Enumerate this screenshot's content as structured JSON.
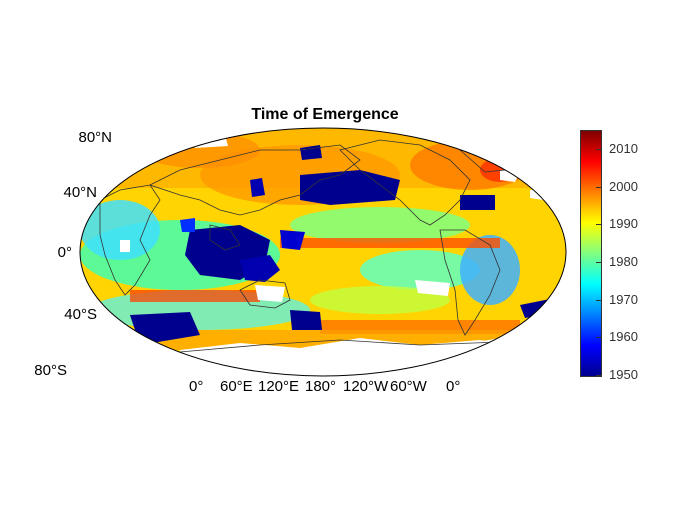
{
  "title": "Time of Emergence",
  "lat_labels": [
    "80°N",
    "40°N",
    "0°",
    "40°S",
    "80°S"
  ],
  "lon_labels": [
    "0°",
    "60°E",
    "120°E",
    "180°",
    "120°W",
    "60°W",
    "0°"
  ],
  "colorbar": {
    "ticks": [
      "2010",
      "2000",
      "1990",
      "1980",
      "1970",
      "1960",
      "1950"
    ],
    "range": [
      1950,
      2015
    ],
    "colormap": "jet",
    "colors": [
      "#00008f",
      "#0000ff",
      "#0080ff",
      "#00ffff",
      "#80ff80",
      "#ffff00",
      "#ff8000",
      "#ff0000",
      "#800000"
    ]
  },
  "map": {
    "projection": "robinson",
    "background_color": "#ffd200",
    "missing_color": "#ffffff",
    "coastline_color": "#333333"
  }
}
